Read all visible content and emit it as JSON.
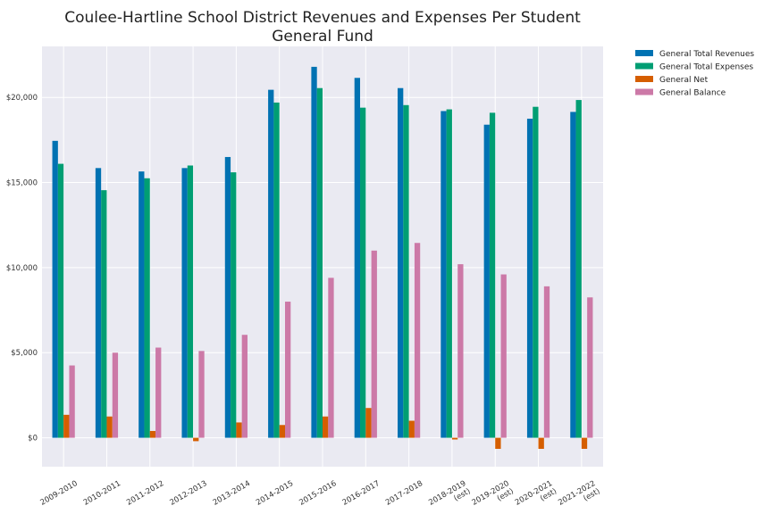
{
  "chart_data": {
    "type": "bar",
    "title": "Coulee-Hartline School District Revenues and Expenses Per Student",
    "subtitle": "General Fund",
    "xlabel": "",
    "ylabel": "",
    "ylim": [
      -1700,
      23000
    ],
    "yticks": [
      0,
      5000,
      10000,
      15000,
      20000
    ],
    "ytick_labels": [
      "$0",
      "$5,000",
      "$10,000",
      "$15,000",
      "$20,000"
    ],
    "grid": true,
    "legend_position": "outside-top-right",
    "background": "#eaeaf2",
    "categories": [
      [
        "2009-2010"
      ],
      [
        "2010-2011"
      ],
      [
        "2011-2012"
      ],
      [
        "2012-2013"
      ],
      [
        "2013-2014"
      ],
      [
        "2014-2015"
      ],
      [
        "2015-2016"
      ],
      [
        "2016-2017"
      ],
      [
        "2017-2018"
      ],
      [
        "2018-2019",
        "(est)"
      ],
      [
        "2019-2020",
        "(est)"
      ],
      [
        "2020-2021",
        "(est)"
      ],
      [
        "2021-2022",
        "(est)"
      ]
    ],
    "series": [
      {
        "name": "General Total Revenues",
        "color": "#0072b2",
        "values": [
          17450,
          15850,
          15650,
          15850,
          16500,
          20450,
          21800,
          21150,
          20550,
          19200,
          18400,
          18750,
          19150
        ]
      },
      {
        "name": "General Total Expenses",
        "color": "#009e73",
        "values": [
          16100,
          14550,
          15250,
          16000,
          15600,
          19700,
          20550,
          19400,
          19550,
          19300,
          19100,
          19450,
          19850
        ]
      },
      {
        "name": "General Net",
        "color": "#d55e00",
        "values": [
          1350,
          1250,
          400,
          -200,
          900,
          750,
          1250,
          1750,
          1000,
          -100,
          -650,
          -650,
          -650
        ]
      },
      {
        "name": "General Balance",
        "color": "#cc79a7",
        "values": [
          4250,
          5000,
          5300,
          5100,
          6050,
          8000,
          9400,
          11000,
          11450,
          10200,
          9600,
          8900,
          8250
        ]
      }
    ]
  }
}
